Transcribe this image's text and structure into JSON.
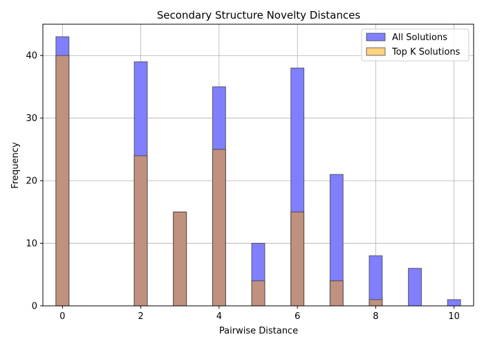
{
  "chart_data": {
    "type": "bar",
    "title": "Secondary Structure Novelty Distances",
    "xlabel": "Pairwise Distance",
    "ylabel": "Frequency",
    "xlim": [
      -0.5,
      10.5
    ],
    "ylim": [
      0,
      45
    ],
    "x_ticks": [
      0,
      2,
      4,
      6,
      8,
      10
    ],
    "y_ticks": [
      0,
      10,
      20,
      30,
      40
    ],
    "grid": true,
    "legend_position": "top-right",
    "x": [
      0,
      2,
      3,
      4,
      5,
      6,
      7,
      8,
      9,
      10
    ],
    "series": [
      {
        "name": "All Solutions",
        "values": [
          43,
          39,
          15,
          35,
          10,
          38,
          21,
          8,
          6,
          1
        ],
        "color": "#8080ff"
      },
      {
        "name": "Top K Solutions",
        "values": [
          40,
          24,
          15,
          25,
          4,
          15,
          4,
          1,
          0,
          0
        ],
        "color": "#ffd27f"
      }
    ],
    "overlap_color": "#c0917e"
  }
}
